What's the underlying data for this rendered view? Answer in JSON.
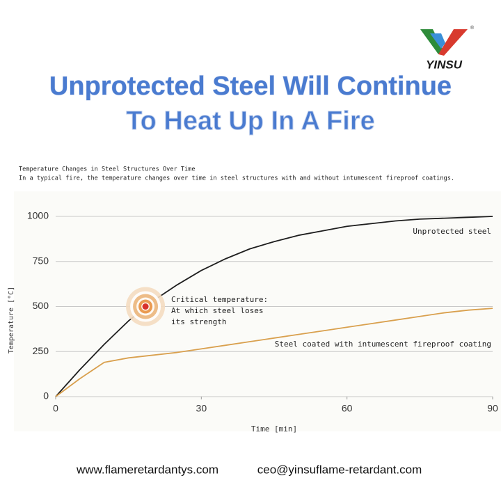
{
  "brand": {
    "name": "YINSU",
    "registered": "®"
  },
  "headline": [
    "Unprotected Steel Will Continue",
    "To Heat Up In A Fire"
  ],
  "chart_data": {
    "type": "line",
    "title": "Temperature Changes in Steel Structures Over Time",
    "subtitle": "In a typical fire, the temperature changes over time in steel structures with and without intumescent fireproof coatings.",
    "x_label": "Time [min]",
    "y_label": "Temperature [°C]",
    "x": [
      0,
      5,
      10,
      15,
      20,
      25,
      30,
      35,
      40,
      45,
      50,
      55,
      60,
      65,
      70,
      75,
      80,
      85,
      90
    ],
    "series": [
      {
        "name": "Unprotected steel",
        "color": "#1e1e1e",
        "values": [
          0,
          150,
          290,
          420,
          530,
          620,
          700,
          765,
          820,
          860,
          895,
          920,
          945,
          960,
          975,
          985,
          990,
          995,
          1000
        ]
      },
      {
        "name": "Steel coated with intumescent fireproof coating",
        "color": "#d9a04e",
        "values": [
          0,
          100,
          190,
          215,
          230,
          245,
          265,
          285,
          305,
          325,
          345,
          365,
          385,
          405,
          425,
          445,
          465,
          480,
          490
        ]
      }
    ],
    "critical_point": {
      "x": 18.5,
      "y": 500,
      "label": [
        "Critical temperature:",
        "At which steel loses",
        "its strength"
      ]
    },
    "xlim": [
      0,
      90
    ],
    "xticks": [
      0,
      30,
      60,
      90
    ],
    "ylim": [
      0,
      1000
    ],
    "yticks": [
      0,
      250,
      500,
      750,
      1000
    ],
    "grid": true
  },
  "footer": {
    "website": "www.flameretardantys.com",
    "email": "ceo@yinsuflame-retardant.com"
  }
}
